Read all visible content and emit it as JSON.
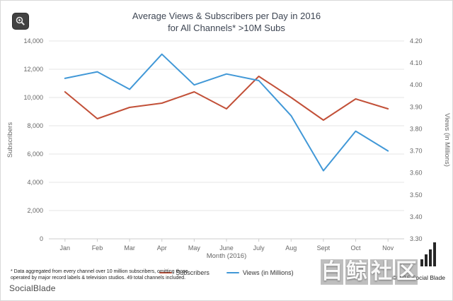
{
  "header": {
    "title_full": "Average Views & Subscribers per Day in 2016 for All Channels* >10M Subs"
  },
  "chart_data": {
    "type": "line",
    "title": "Average Views & Subscribers per Day in 2016 for All Channels* >10M Subs",
    "title_lines": [
      "Average Views & Subscribers per Day in 2016",
      "for All Channels* >10M Subs"
    ],
    "xlabel": "Month (2016)",
    "ylabel_left": "Subscribers",
    "ylabel_right": "Views (in Millions)",
    "categories": [
      "Jan",
      "Feb",
      "Mar",
      "Apr",
      "May",
      "June",
      "July",
      "Aug",
      "Sept",
      "Oct",
      "Nov"
    ],
    "series": [
      {
        "name": "Subscribers",
        "axis": "left",
        "color": "#c25038",
        "values": [
          10400,
          8500,
          9300,
          9600,
          10400,
          9200,
          11500,
          10000,
          8400,
          9900,
          9200
        ]
      },
      {
        "name": "Views (in Millions)",
        "axis": "right",
        "color": "#4198d7",
        "values": [
          4.03,
          4.06,
          3.98,
          4.14,
          4.0,
          4.05,
          4.02,
          3.86,
          3.61,
          3.79,
          3.7
        ]
      }
    ],
    "left_axis": {
      "min": 0,
      "max": 14000,
      "ticks": [
        "0",
        "2,000",
        "4,000",
        "6,000",
        "8,000",
        "10,000",
        "12,000",
        "14,000"
      ]
    },
    "right_axis": {
      "min": 3.3,
      "max": 4.2,
      "ticks": [
        "3.30",
        "3.40",
        "3.50",
        "3.60",
        "3.70",
        "3.80",
        "3.90",
        "4.00",
        "4.10",
        "4.20"
      ]
    },
    "grid": true,
    "legend_position": "bottom",
    "grid_color": "#e6e6e6",
    "axis_line_color": "#cccccc"
  },
  "footnote": {
    "line1": "* Data aggregated from every channel over 10 million subscribers, omitting those",
    "line2": "operated by major record labels & television studios. 49 total channels included."
  },
  "branding": {
    "logo": "SocialBlade",
    "copyright": "©2016 Social Blade"
  },
  "watermark": {
    "text": "白鲸社区"
  }
}
